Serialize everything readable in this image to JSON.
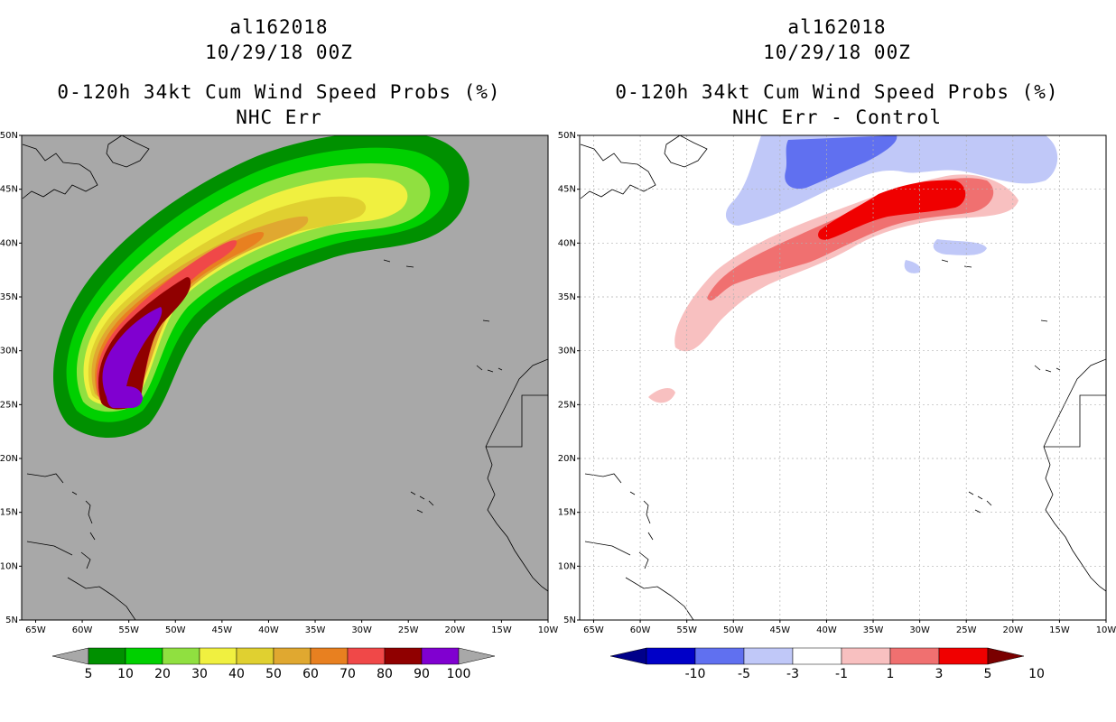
{
  "left": {
    "storm_id": "al162018",
    "datetime": "10/29/18 00Z",
    "product": "0-120h 34kt Cum Wind Speed Probs (%)",
    "subtitle": "NHC Err",
    "colorbar": {
      "labels": [
        "5",
        "10",
        "20",
        "30",
        "40",
        "50",
        "60",
        "70",
        "80",
        "90",
        "100"
      ],
      "colors": [
        "#009000",
        "#00d000",
        "#90e040",
        "#f0f040",
        "#e0d030",
        "#e0a830",
        "#e88020",
        "#f04848",
        "#900000",
        "#8000d0"
      ]
    }
  },
  "right": {
    "storm_id": "al162018",
    "datetime": "10/29/18 00Z",
    "product": "0-120h 34kt Cum Wind Speed Probs (%)",
    "subtitle": "NHC Err - Control",
    "colorbar": {
      "labels": [
        "-10",
        "-5",
        "-3",
        "-1",
        "1",
        "3",
        "5",
        "10"
      ],
      "colors": [
        "#0000c8",
        "#6070f0",
        "#c0c8f8",
        "#ffffff",
        "#f8c0c0",
        "#f07070",
        "#f00000"
      ]
    }
  },
  "axes": {
    "lat_labels": [
      "50N",
      "45N",
      "40N",
      "35N",
      "30N",
      "25N",
      "20N",
      "15N",
      "10N",
      "5N"
    ],
    "lon_labels": [
      "65W",
      "60W",
      "55W",
      "50W",
      "45W",
      "40W",
      "35W",
      "30W",
      "25W",
      "20W",
      "15W",
      "10W"
    ]
  },
  "colors": {
    "land_background": "#a8a8a8",
    "coastline": "#000000",
    "grid": "#b0b0b0"
  }
}
